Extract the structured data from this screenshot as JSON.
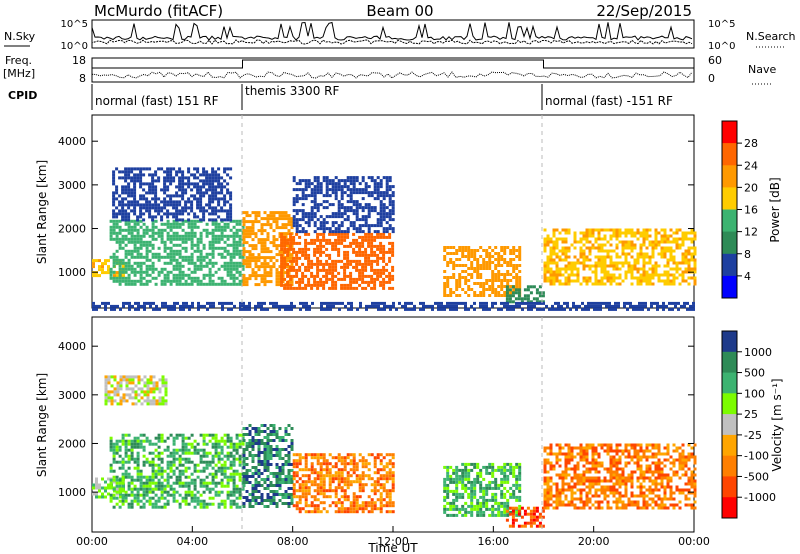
{
  "header": {
    "title": "McMurdo (fitACF)",
    "beam": "Beam 00",
    "date": "22/Sep/2015"
  },
  "summary_panels": {
    "nsky_label": "N.Sky",
    "nsky_ticks": [
      "10^5",
      "10^0"
    ],
    "nsearch_label": "N.Search",
    "nsearch_ticks": [
      "10^5",
      "10^0"
    ],
    "freq_label": "Freq.",
    "freq_unit": "[MHz]",
    "freq_ticks": [
      "18",
      "8"
    ],
    "nave_label": "Nave",
    "nave_ticks": [
      "60",
      "0"
    ],
    "cpid_label": "CPID",
    "cpid_segments": [
      {
        "label": "normal (fast) 151 RF",
        "start_h": 0,
        "end_h": 6
      },
      {
        "label": "themis 3300 RF",
        "start_h": 6,
        "end_h": 18
      },
      {
        "label": "normal (fast) -151 RF",
        "start_h": 18,
        "end_h": 24
      }
    ],
    "colors": {
      "trace": "#000000"
    }
  },
  "chart_data": [
    {
      "type": "heatmap",
      "panel": "power",
      "ylabel": "Slant Range [km]",
      "ylim": [
        180,
        4600
      ],
      "xlim_hours": [
        0,
        24
      ],
      "yticks": [
        "4000",
        "3000",
        "2000",
        "1000"
      ],
      "ytick_values": [
        4000,
        3000,
        2000,
        1000
      ],
      "colorbar": {
        "label": "Power [dB]",
        "ticks": [
          "28",
          "24",
          "20",
          "16",
          "12",
          "8",
          "4"
        ],
        "range": [
          0,
          32
        ],
        "colors": [
          "#ff0000",
          "#ff6600",
          "#ff9900",
          "#ffcc00",
          "#3cb371",
          "#2e8b57",
          "#1e40a0",
          "#0000ff"
        ]
      },
      "echo_regions": [
        {
          "start_h": 0.0,
          "end_h": 1.2,
          "r_lo": 900,
          "r_hi": 1300,
          "level": 20
        },
        {
          "start_h": 0.7,
          "end_h": 6.0,
          "r_lo": 700,
          "r_hi": 2200,
          "level": 14
        },
        {
          "start_h": 0.8,
          "end_h": 5.5,
          "r_lo": 2200,
          "r_hi": 3400,
          "level": 6
        },
        {
          "start_h": 6.0,
          "end_h": 8.0,
          "r_lo": 700,
          "r_hi": 2400,
          "level": 22
        },
        {
          "start_h": 7.5,
          "end_h": 12.0,
          "r_lo": 600,
          "r_hi": 1900,
          "level": 26
        },
        {
          "start_h": 8.0,
          "end_h": 12.0,
          "r_lo": 1900,
          "r_hi": 3200,
          "level": 6
        },
        {
          "start_h": 14.0,
          "end_h": 17.0,
          "r_lo": 500,
          "r_hi": 1600,
          "level": 22
        },
        {
          "start_h": 16.5,
          "end_h": 18.0,
          "r_lo": 300,
          "r_hi": 700,
          "level": 10
        },
        {
          "start_h": 18.0,
          "end_h": 24.0,
          "r_lo": 700,
          "r_hi": 2000,
          "level": 20
        },
        {
          "start_h": 0.0,
          "end_h": 24.0,
          "r_lo": 180,
          "r_hi": 320,
          "level": 6
        }
      ]
    },
    {
      "type": "heatmap",
      "panel": "velocity",
      "xlabel": "Time UT",
      "ylabel": "Slant Range [km]",
      "ylim": [
        180,
        4600
      ],
      "xlim_hours": [
        0,
        24
      ],
      "xticks": [
        "00:00",
        "04:00",
        "08:00",
        "12:00",
        "16:00",
        "20:00",
        "00:00"
      ],
      "yticks": [
        "4000",
        "3000",
        "2000",
        "1000"
      ],
      "ytick_values": [
        4000,
        3000,
        2000,
        1000
      ],
      "colorbar": {
        "label": "Velocity [m s⁻¹]",
        "ticks": [
          "1000",
          "500",
          "100",
          "25",
          "-25",
          "-100",
          "-500",
          "-1000"
        ],
        "colors": [
          "#1e3a8a",
          "#2e8b57",
          "#3cb371",
          "#7cfc00",
          "#c0c0c0",
          "#ffa500",
          "#ff7f00",
          "#ff4500",
          "#ff0000"
        ]
      },
      "echo_regions": [
        {
          "start_h": 0.0,
          "end_h": 1.2,
          "r_lo": 900,
          "r_hi": 1300,
          "level": 3
        },
        {
          "start_h": 0.7,
          "end_h": 6.0,
          "r_lo": 700,
          "r_hi": 2200,
          "level": 2
        },
        {
          "start_h": 0.5,
          "end_h": 3.0,
          "r_lo": 2800,
          "r_hi": 3400,
          "level": 4
        },
        {
          "start_h": 6.0,
          "end_h": 8.0,
          "r_lo": 700,
          "r_hi": 2400,
          "level": 1
        },
        {
          "start_h": 8.0,
          "end_h": 12.0,
          "r_lo": 600,
          "r_hi": 1800,
          "level": 6
        },
        {
          "start_h": 14.0,
          "end_h": 17.0,
          "r_lo": 500,
          "r_hi": 1600,
          "level": 2
        },
        {
          "start_h": 16.5,
          "end_h": 18.0,
          "r_lo": 300,
          "r_hi": 700,
          "level": 7
        },
        {
          "start_h": 18.0,
          "end_h": 24.0,
          "r_lo": 700,
          "r_hi": 2000,
          "level": 6
        }
      ]
    }
  ]
}
